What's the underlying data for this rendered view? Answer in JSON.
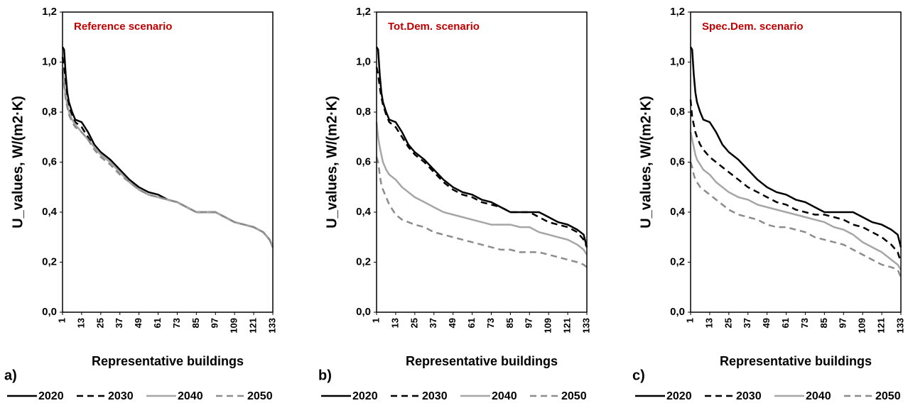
{
  "chart_data": [
    {
      "type": "line",
      "title": "Reference scenario",
      "panel_label": "a)",
      "xlabel": "Representative buildings",
      "ylabel": "U_values, W/(m2·K)",
      "x": [
        1,
        2,
        3,
        4,
        5,
        7,
        9,
        13,
        17,
        21,
        25,
        31,
        37,
        43,
        49,
        55,
        61,
        67,
        73,
        79,
        85,
        91,
        97,
        103,
        109,
        115,
        121,
        127,
        131,
        133
      ],
      "xlim": [
        1,
        133
      ],
      "xticks": [
        1,
        13,
        25,
        37,
        49,
        61,
        73,
        85,
        97,
        109,
        121,
        133
      ],
      "ylim": [
        0,
        1.2
      ],
      "yticks": [
        {
          "value": 0,
          "label": "0,0"
        },
        {
          "value": 0.2,
          "label": "0,2"
        },
        {
          "value": 0.4,
          "label": "0,4"
        },
        {
          "value": 0.6,
          "label": "0,6"
        },
        {
          "value": 0.8,
          "label": "0,8"
        },
        {
          "value": 1,
          "label": "1,0"
        },
        {
          "value": 1.2,
          "label": "1,2"
        }
      ],
      "series": [
        {
          "name": "2020",
          "color": "#000000",
          "dashed": false,
          "values": [
            1.06,
            1.05,
            0.95,
            0.88,
            0.84,
            0.8,
            0.77,
            0.76,
            0.72,
            0.67,
            0.64,
            0.61,
            0.57,
            0.53,
            0.5,
            0.48,
            0.47,
            0.45,
            0.44,
            0.42,
            0.4,
            0.4,
            0.4,
            0.38,
            0.36,
            0.35,
            0.34,
            0.32,
            0.29,
            0.26
          ]
        },
        {
          "name": "2030",
          "color": "#000000",
          "dashed": true,
          "values": [
            1.02,
            0.98,
            0.92,
            0.86,
            0.82,
            0.79,
            0.76,
            0.74,
            0.7,
            0.66,
            0.63,
            0.6,
            0.56,
            0.52,
            0.49,
            0.47,
            0.46,
            0.45,
            0.44,
            0.42,
            0.4,
            0.4,
            0.4,
            0.38,
            0.36,
            0.35,
            0.34,
            0.32,
            0.29,
            0.26
          ]
        },
        {
          "name": "2040",
          "color": "#a6a6a6",
          "dashed": false,
          "values": [
            0.97,
            0.92,
            0.86,
            0.83,
            0.8,
            0.77,
            0.75,
            0.72,
            0.69,
            0.66,
            0.63,
            0.6,
            0.56,
            0.52,
            0.49,
            0.47,
            0.46,
            0.45,
            0.44,
            0.42,
            0.4,
            0.4,
            0.4,
            0.38,
            0.36,
            0.35,
            0.34,
            0.32,
            0.29,
            0.26
          ]
        },
        {
          "name": "2050",
          "color": "#8c8c8c",
          "dashed": true,
          "values": [
            0.96,
            0.91,
            0.85,
            0.82,
            0.79,
            0.76,
            0.74,
            0.72,
            0.69,
            0.65,
            0.62,
            0.59,
            0.55,
            0.52,
            0.49,
            0.47,
            0.46,
            0.45,
            0.44,
            0.42,
            0.4,
            0.4,
            0.4,
            0.38,
            0.36,
            0.35,
            0.34,
            0.32,
            0.29,
            0.26
          ]
        }
      ]
    },
    {
      "type": "line",
      "title": "Tot.Dem. scenario",
      "panel_label": "b)",
      "xlabel": "Representative buildings",
      "ylabel": "U_values, W/(m2·K)",
      "x": [
        1,
        2,
        3,
        4,
        5,
        7,
        9,
        13,
        17,
        21,
        25,
        31,
        37,
        43,
        49,
        55,
        61,
        67,
        73,
        79,
        85,
        91,
        97,
        103,
        109,
        115,
        121,
        127,
        131,
        133
      ],
      "xlim": [
        1,
        133
      ],
      "xticks": [
        1,
        13,
        25,
        37,
        49,
        61,
        73,
        85,
        97,
        109,
        121,
        133
      ],
      "ylim": [
        0,
        1.2
      ],
      "yticks": [
        {
          "value": 0,
          "label": "0,0"
        },
        {
          "value": 0.2,
          "label": "0,2"
        },
        {
          "value": 0.4,
          "label": "0,4"
        },
        {
          "value": 0.6,
          "label": "0,6"
        },
        {
          "value": 0.8,
          "label": "0,8"
        },
        {
          "value": 1,
          "label": "1,0"
        },
        {
          "value": 1.2,
          "label": "1,2"
        }
      ],
      "series": [
        {
          "name": "2020",
          "color": "#000000",
          "dashed": false,
          "values": [
            1.06,
            1.05,
            0.95,
            0.88,
            0.84,
            0.8,
            0.77,
            0.76,
            0.72,
            0.67,
            0.64,
            0.61,
            0.57,
            0.53,
            0.5,
            0.48,
            0.47,
            0.45,
            0.44,
            0.42,
            0.4,
            0.4,
            0.4,
            0.4,
            0.38,
            0.36,
            0.35,
            0.33,
            0.31,
            0.26
          ]
        },
        {
          "name": "2030",
          "color": "#000000",
          "dashed": true,
          "values": [
            0.98,
            0.95,
            0.9,
            0.86,
            0.83,
            0.79,
            0.76,
            0.74,
            0.7,
            0.66,
            0.63,
            0.6,
            0.56,
            0.52,
            0.49,
            0.47,
            0.46,
            0.44,
            0.43,
            0.42,
            0.4,
            0.4,
            0.4,
            0.38,
            0.36,
            0.35,
            0.34,
            0.32,
            0.29,
            0.26
          ]
        },
        {
          "name": "2040",
          "color": "#a6a6a6",
          "dashed": false,
          "values": [
            0.76,
            0.7,
            0.66,
            0.63,
            0.6,
            0.57,
            0.55,
            0.53,
            0.5,
            0.48,
            0.46,
            0.44,
            0.42,
            0.4,
            0.39,
            0.38,
            0.37,
            0.36,
            0.35,
            0.35,
            0.35,
            0.34,
            0.34,
            0.32,
            0.31,
            0.3,
            0.29,
            0.27,
            0.25,
            0.23
          ]
        },
        {
          "name": "2050",
          "color": "#8c8c8c",
          "dashed": true,
          "values": [
            0.62,
            0.6,
            0.55,
            0.51,
            0.49,
            0.46,
            0.43,
            0.39,
            0.37,
            0.36,
            0.35,
            0.34,
            0.32,
            0.31,
            0.3,
            0.29,
            0.28,
            0.27,
            0.26,
            0.25,
            0.25,
            0.24,
            0.24,
            0.24,
            0.23,
            0.22,
            0.21,
            0.2,
            0.19,
            0.18
          ]
        }
      ]
    },
    {
      "type": "line",
      "title": "Spec.Dem. scenario",
      "panel_label": "c)",
      "xlabel": "Representative buildings",
      "ylabel": "U_values, W/(m2·K)",
      "x": [
        1,
        2,
        3,
        4,
        5,
        7,
        9,
        13,
        17,
        21,
        25,
        31,
        37,
        43,
        49,
        55,
        61,
        67,
        73,
        79,
        85,
        91,
        97,
        103,
        109,
        115,
        121,
        127,
        131,
        133
      ],
      "xlim": [
        1,
        133
      ],
      "xticks": [
        1,
        13,
        25,
        37,
        49,
        61,
        73,
        85,
        97,
        109,
        121,
        133
      ],
      "ylim": [
        0,
        1.2
      ],
      "yticks": [
        {
          "value": 0,
          "label": "0,0"
        },
        {
          "value": 0.2,
          "label": "0,2"
        },
        {
          "value": 0.4,
          "label": "0,4"
        },
        {
          "value": 0.6,
          "label": "0,6"
        },
        {
          "value": 0.8,
          "label": "0,8"
        },
        {
          "value": 1,
          "label": "1,0"
        },
        {
          "value": 1.2,
          "label": "1,2"
        }
      ],
      "series": [
        {
          "name": "2020",
          "color": "#000000",
          "dashed": false,
          "values": [
            1.06,
            1.05,
            0.95,
            0.88,
            0.84,
            0.8,
            0.77,
            0.76,
            0.72,
            0.67,
            0.64,
            0.61,
            0.57,
            0.53,
            0.5,
            0.48,
            0.47,
            0.45,
            0.44,
            0.42,
            0.4,
            0.4,
            0.4,
            0.4,
            0.38,
            0.36,
            0.35,
            0.33,
            0.31,
            0.26
          ]
        },
        {
          "name": "2030",
          "color": "#000000",
          "dashed": true,
          "values": [
            0.85,
            0.78,
            0.75,
            0.72,
            0.7,
            0.67,
            0.65,
            0.62,
            0.6,
            0.58,
            0.56,
            0.53,
            0.5,
            0.48,
            0.46,
            0.44,
            0.43,
            0.41,
            0.4,
            0.39,
            0.39,
            0.38,
            0.37,
            0.35,
            0.34,
            0.32,
            0.3,
            0.27,
            0.24,
            0.2
          ]
        },
        {
          "name": "2040",
          "color": "#a6a6a6",
          "dashed": false,
          "values": [
            0.72,
            0.69,
            0.66,
            0.63,
            0.61,
            0.59,
            0.57,
            0.55,
            0.52,
            0.5,
            0.48,
            0.46,
            0.45,
            0.43,
            0.42,
            0.41,
            0.4,
            0.39,
            0.38,
            0.37,
            0.36,
            0.34,
            0.33,
            0.31,
            0.28,
            0.26,
            0.24,
            0.21,
            0.19,
            0.17
          ]
        },
        {
          "name": "2050",
          "color": "#8c8c8c",
          "dashed": true,
          "values": [
            0.6,
            0.58,
            0.55,
            0.53,
            0.52,
            0.5,
            0.49,
            0.47,
            0.45,
            0.43,
            0.41,
            0.39,
            0.38,
            0.37,
            0.35,
            0.34,
            0.34,
            0.33,
            0.32,
            0.3,
            0.29,
            0.28,
            0.27,
            0.25,
            0.23,
            0.21,
            0.19,
            0.18,
            0.17,
            0.14
          ]
        }
      ]
    }
  ]
}
